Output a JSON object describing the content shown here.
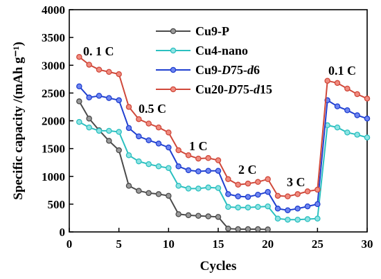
{
  "chart_data": {
    "type": "line",
    "xlabel": "Cycles",
    "ylabel": "Specific capacity /(mAh g⁻¹)",
    "xlim": [
      0,
      30
    ],
    "ylim": [
      0,
      4000
    ],
    "x_ticks": [
      "0",
      "5",
      "10",
      "15",
      "20",
      "25",
      "30"
    ],
    "y_ticks": [
      "0",
      "500",
      "1000",
      "1500",
      "2000",
      "2500",
      "3000",
      "3500",
      "4000"
    ],
    "grid": false,
    "legend_position": "top-center",
    "annotations": [
      "0. 1 C",
      "0.5 C",
      "1 C",
      "2 C",
      "3 C",
      "0.1 C"
    ],
    "series": [
      {
        "name": "Cu9-P",
        "legend_parts": [
          {
            "t": "Cu9-P",
            "i": false
          }
        ],
        "color": "#4a4a4a",
        "fill": "#9a9a9a",
        "x": [
          1,
          2,
          3,
          4,
          5,
          6,
          7,
          8,
          9,
          10,
          11,
          12,
          13,
          14,
          15,
          16,
          17,
          18,
          19,
          20
        ],
        "y": [
          2350,
          2040,
          1830,
          1640,
          1470,
          830,
          740,
          700,
          680,
          650,
          320,
          300,
          290,
          280,
          270,
          60,
          50,
          50,
          50,
          45
        ]
      },
      {
        "name": "Cu4-nano",
        "legend_parts": [
          {
            "t": "Cu4-nano",
            "i": false
          }
        ],
        "color": "#2bc0c0",
        "fill": "#8fe3e3",
        "x": [
          1,
          2,
          3,
          4,
          5,
          6,
          7,
          8,
          9,
          10,
          11,
          12,
          13,
          14,
          15,
          16,
          17,
          18,
          19,
          20,
          21,
          22,
          23,
          24,
          25,
          26,
          27,
          28,
          29,
          30
        ],
        "y": [
          1980,
          1880,
          1820,
          1820,
          1800,
          1380,
          1270,
          1220,
          1180,
          1150,
          830,
          780,
          780,
          800,
          790,
          450,
          440,
          440,
          450,
          460,
          240,
          220,
          220,
          230,
          240,
          1920,
          1880,
          1790,
          1750,
          1700
        ]
      },
      {
        "name": "Cu9-D75-d6",
        "legend_parts": [
          {
            "t": "Cu9-",
            "i": false
          },
          {
            "t": "D",
            "i": true
          },
          {
            "t": "75-",
            "i": false
          },
          {
            "t": "d",
            "i": true
          },
          {
            "t": "6",
            "i": false
          }
        ],
        "color": "#1f3fd0",
        "fill": "#6f86f0",
        "x": [
          1,
          2,
          3,
          4,
          5,
          6,
          7,
          8,
          9,
          10,
          11,
          12,
          13,
          14,
          15,
          16,
          17,
          18,
          19,
          20,
          21,
          22,
          23,
          24,
          25,
          26,
          27,
          28,
          29,
          30
        ],
        "y": [
          2620,
          2420,
          2450,
          2410,
          2370,
          1870,
          1720,
          1650,
          1590,
          1520,
          1180,
          1110,
          1090,
          1100,
          1100,
          680,
          640,
          630,
          670,
          720,
          420,
          390,
          420,
          460,
          500,
          2370,
          2260,
          2190,
          2100,
          2040
        ]
      },
      {
        "name": "Cu20-D75-d15",
        "legend_parts": [
          {
            "t": "Cu20-",
            "i": false
          },
          {
            "t": "D",
            "i": true
          },
          {
            "t": "75-",
            "i": false
          },
          {
            "t": "d",
            "i": true
          },
          {
            "t": "15",
            "i": false
          }
        ],
        "color": "#d0483a",
        "fill": "#f08c80",
        "x": [
          1,
          2,
          3,
          4,
          5,
          6,
          7,
          8,
          9,
          10,
          11,
          12,
          13,
          14,
          15,
          16,
          17,
          18,
          19,
          20,
          21,
          22,
          23,
          24,
          25,
          26,
          27,
          28,
          29,
          30
        ],
        "y": [
          3150,
          3010,
          2920,
          2880,
          2840,
          2250,
          2030,
          1950,
          1880,
          1790,
          1470,
          1380,
          1320,
          1330,
          1290,
          950,
          850,
          870,
          900,
          950,
          650,
          640,
          680,
          730,
          760,
          2720,
          2680,
          2580,
          2480,
          2400
        ]
      }
    ]
  }
}
